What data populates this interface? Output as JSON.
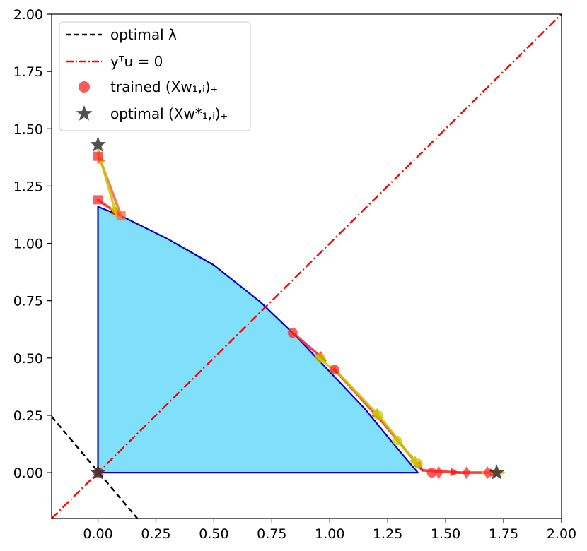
{
  "chart_data": {
    "type": "line",
    "title": "",
    "xlabel": "",
    "ylabel": "",
    "xlim": [
      -0.2,
      2.0
    ],
    "ylim": [
      -0.2,
      2.0
    ],
    "xticks": [
      0.0,
      0.25,
      0.5,
      0.75,
      1.0,
      1.25,
      1.5,
      1.75,
      2.0
    ],
    "yticks": [
      0.0,
      0.25,
      0.5,
      0.75,
      1.0,
      1.25,
      1.5,
      1.75,
      2.0
    ],
    "xtick_labels": [
      "0.00",
      "0.25",
      "0.50",
      "0.75",
      "1.00",
      "1.25",
      "1.50",
      "1.75",
      "2.00"
    ],
    "ytick_labels": [
      "0.00",
      "0.25",
      "0.50",
      "0.75",
      "1.00",
      "1.25",
      "1.50",
      "1.75",
      "2.00"
    ],
    "grid": false,
    "legend_position": "top-left",
    "colors": {
      "region_fill": "#80dffa",
      "region_edge": "#0000cc",
      "optimal_lambda": "#000000",
      "constraint": "#ff0000",
      "trained_red": "#ff2020",
      "trained_yellow": "#c8c800",
      "optimal_star": "#333333"
    },
    "legend": [
      {
        "key": "optimal_lambda",
        "label": "optimal λ",
        "style": "dashed"
      },
      {
        "key": "constraint",
        "label": "yᵀu = 0",
        "style": "dashdot"
      },
      {
        "key": "trained",
        "label": "trained (Xw₁,ᵢ)₊",
        "style": "circle"
      },
      {
        "key": "optimal_star",
        "label": "optimal (Xw*₁,ᵢ)₊",
        "style": "star"
      }
    ],
    "region_boundary": [
      [
        0.0,
        0.0
      ],
      [
        0.0,
        1.16
      ],
      [
        0.1,
        1.12
      ],
      [
        0.3,
        1.02
      ],
      [
        0.5,
        0.905
      ],
      [
        0.7,
        0.745
      ],
      [
        0.85,
        0.6
      ],
      [
        1.0,
        0.44
      ],
      [
        1.15,
        0.28
      ],
      [
        1.28,
        0.12
      ],
      [
        1.38,
        0.0
      ],
      [
        0.0,
        0.0
      ]
    ],
    "series": [
      {
        "name": "optimal λ",
        "kind": "line",
        "style": "dashed",
        "color": "#000000",
        "points": [
          [
            -0.2,
            0.245
          ],
          [
            0.17,
            -0.2
          ]
        ]
      },
      {
        "name": "yᵀu = 0",
        "kind": "line",
        "style": "dashdot",
        "color": "#ff0000",
        "points": [
          [
            -0.2,
            -0.2
          ],
          [
            2.0,
            2.0
          ]
        ]
      },
      {
        "name": "trained (Xw₁,ᵢ)₊",
        "kind": "markers",
        "points": [
          {
            "x": 0.84,
            "y": 0.61,
            "shape": "circle",
            "color": "#ff2020"
          },
          {
            "x": 0.96,
            "y": 0.5,
            "shape": "circle",
            "color": "#c8c800"
          },
          {
            "x": 1.02,
            "y": 0.45,
            "shape": "circle",
            "color": "#ff2020"
          },
          {
            "x": 1.21,
            "y": 0.25,
            "shape": "circle",
            "color": "#c8c800"
          },
          {
            "x": 1.29,
            "y": 0.14,
            "shape": "circle",
            "color": "#c8c800"
          },
          {
            "x": 1.38,
            "y": 0.04,
            "shape": "circle",
            "color": "#c8c800"
          },
          {
            "x": 1.44,
            "y": 0.0,
            "shape": "circle",
            "color": "#ff2020"
          },
          {
            "x": 0.0,
            "y": 1.19,
            "shape": "square",
            "color": "#ff2020"
          },
          {
            "x": 0.0,
            "y": 1.38,
            "shape": "square",
            "color": "#ff2020"
          },
          {
            "x": 0.1,
            "y": 1.12,
            "shape": "square",
            "color": "#ff6030"
          },
          {
            "x": 1.47,
            "y": 0.0,
            "shape": "diamond",
            "color": "#ff2020"
          },
          {
            "x": 1.59,
            "y": 0.0,
            "shape": "diamond",
            "color": "#ff2020"
          },
          {
            "x": 1.68,
            "y": 0.0,
            "shape": "diamond",
            "color": "#ff2020"
          },
          {
            "x": 0.0,
            "y": 0.0,
            "shape": "circle",
            "color": "#ff2020"
          }
        ]
      },
      {
        "name": "optimal (Xw*₁,ᵢ)₊",
        "kind": "markers",
        "points": [
          {
            "x": 0.0,
            "y": 1.43,
            "shape": "star",
            "color": "#333333"
          },
          {
            "x": 1.72,
            "y": 0.0,
            "shape": "star",
            "color": "#333333"
          },
          {
            "x": 0.0,
            "y": 0.0,
            "shape": "star",
            "color": "#333333"
          }
        ]
      }
    ],
    "trajectories": [
      {
        "color": "#ff1a1a",
        "points": [
          [
            0.84,
            0.61
          ],
          [
            0.98,
            0.49
          ]
        ]
      },
      {
        "color": "#c8c800",
        "points": [
          [
            0.94,
            0.51
          ],
          [
            1.04,
            0.43
          ]
        ]
      },
      {
        "color": "#ff1a1a",
        "points": [
          [
            1.02,
            0.45
          ],
          [
            1.22,
            0.23
          ]
        ]
      },
      {
        "color": "#c8c800",
        "points": [
          [
            1.04,
            0.43
          ],
          [
            1.22,
            0.24
          ]
        ]
      },
      {
        "color": "#ff1a1a",
        "points": [
          [
            1.22,
            0.23
          ],
          [
            1.4,
            0.01
          ]
        ]
      },
      {
        "color": "#c8c800",
        "points": [
          [
            1.22,
            0.24
          ],
          [
            1.38,
            0.03
          ]
        ]
      },
      {
        "color": "#ff1a1a",
        "points": [
          [
            1.4,
            0.01
          ],
          [
            1.56,
            0.0
          ]
        ]
      },
      {
        "color": "#ff1a1a",
        "points": [
          [
            1.56,
            0.0
          ],
          [
            1.73,
            0.0
          ]
        ]
      },
      {
        "color": "#ffb000",
        "points": [
          [
            1.66,
            0.0
          ],
          [
            1.75,
            0.0
          ]
        ]
      },
      {
        "color": "#ff1a1a",
        "points": [
          [
            0.0,
            1.19
          ],
          [
            0.1,
            1.12
          ]
        ]
      },
      {
        "color": "#ff6030",
        "points": [
          [
            0.1,
            1.12
          ],
          [
            0.0,
            1.39
          ]
        ]
      },
      {
        "color": "#c8c800",
        "points": [
          [
            0.0,
            1.41
          ],
          [
            0.08,
            1.12
          ]
        ]
      }
    ]
  }
}
